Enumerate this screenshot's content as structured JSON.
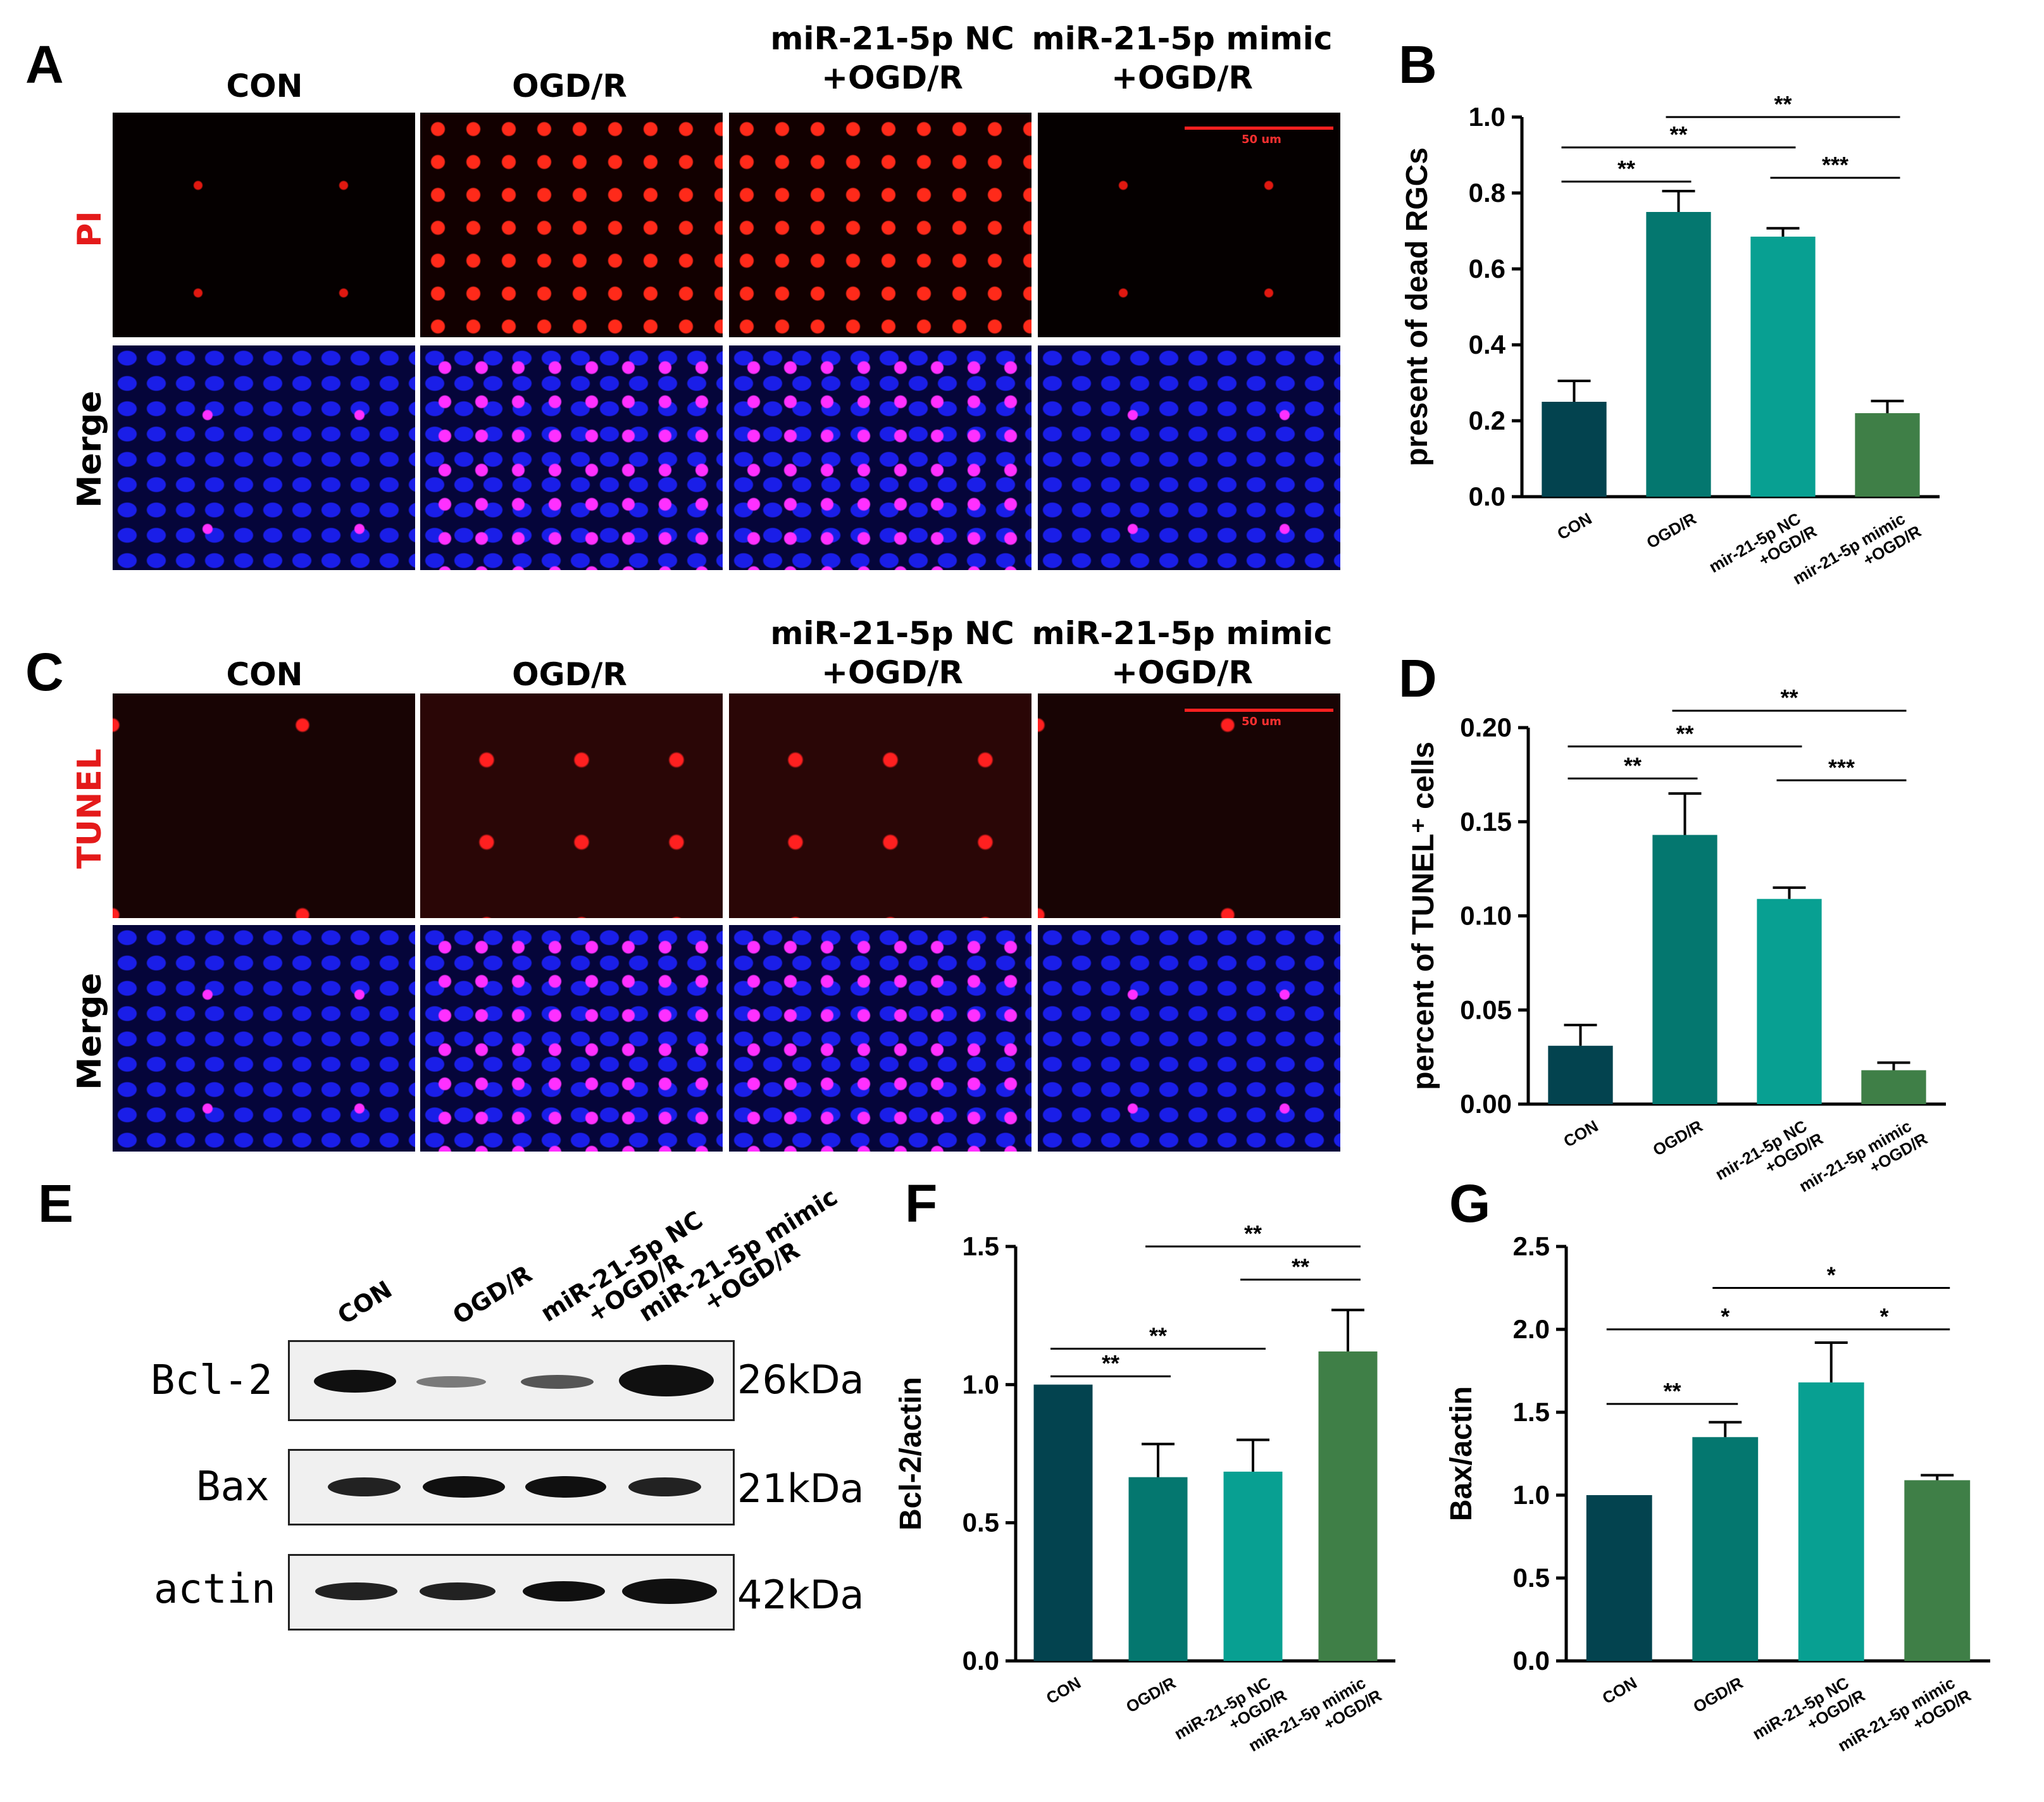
{
  "panel_letters": [
    "A",
    "B",
    "C",
    "D",
    "E",
    "F",
    "G"
  ],
  "groups": [
    "CON",
    "OGD/R",
    "miR-21-5p NC\n+OGD/R",
    "miR-21-5p mimic\n+OGD/R"
  ],
  "microscopy": {
    "row_labels_A": [
      "PI",
      "Merge"
    ],
    "row_labels_C": [
      "TUNEL",
      "Merge"
    ],
    "scale_bar": "50 um"
  },
  "western_blot": {
    "lanes": [
      "CON",
      "OGD/R",
      "miR-21-5p NC\n+OGD/R",
      "miR-21-5p mimic\n+OGD/R"
    ],
    "proteins": [
      "Bcl-2",
      "Bax",
      "actin"
    ],
    "sizes": [
      "26kDa",
      "21kDa",
      "42kDa"
    ]
  },
  "colors": {
    "con": "#03434f",
    "ogdr": "#04776f",
    "nc": "#08a092",
    "mimic": "#3f7f47",
    "red_label": "#e41a1a"
  },
  "chart_data": [
    {
      "id": "B",
      "type": "bar",
      "categories": [
        "CON",
        "OGD/R",
        "mir-21-5p NC\n+OGD/R",
        "mir-21-5p mimic\n+OGD/R"
      ],
      "values": [
        0.25,
        0.75,
        0.685,
        0.22
      ],
      "errors": [
        0.055,
        0.055,
        0.022,
        0.032
      ],
      "ylabel": "present of dead RGCs",
      "ylim": [
        0,
        1.0
      ],
      "yticks": [
        "0.0",
        "0.2",
        "0.4",
        "0.6",
        "0.8",
        "1.0"
      ],
      "significance": [
        {
          "from": 0,
          "to": 1,
          "y": 0.83,
          "label": "**"
        },
        {
          "from": 0,
          "to": 2,
          "y": 0.92,
          "label": "**"
        },
        {
          "from": 1,
          "to": 3,
          "y": 1.0,
          "label": "**"
        },
        {
          "from": 2,
          "to": 3,
          "y": 0.84,
          "label": "***"
        }
      ]
    },
    {
      "id": "D",
      "type": "bar",
      "categories": [
        "CON",
        "OGD/R",
        "mir-21-5p NC\n+OGD/R",
        "mir-21-5p mimic\n+OGD/R"
      ],
      "values": [
        0.031,
        0.143,
        0.109,
        0.018
      ],
      "errors": [
        0.011,
        0.022,
        0.006,
        0.004
      ],
      "ylabel": "percent of TUNEL⁺ cells",
      "ylim": [
        0,
        0.2
      ],
      "yticks": [
        "0.00",
        "0.05",
        "0.10",
        "0.15",
        "0.20"
      ],
      "significance": [
        {
          "from": 0,
          "to": 1,
          "y": 0.173,
          "label": "**"
        },
        {
          "from": 0,
          "to": 2,
          "y": 0.19,
          "label": "**"
        },
        {
          "from": 1,
          "to": 3,
          "y": 0.209,
          "label": "**"
        },
        {
          "from": 2,
          "to": 3,
          "y": 0.172,
          "label": "***"
        }
      ]
    },
    {
      "id": "F",
      "type": "bar",
      "categories": [
        "CON",
        "OGD/R",
        "miR-21-5p NC\n+OGD/R",
        "miR-21-5p mimic\n+OGD/R"
      ],
      "values": [
        1.0,
        0.665,
        0.685,
        1.12
      ],
      "errors": [
        0,
        0.12,
        0.115,
        0.15
      ],
      "ylabel": "Bcl-2/actin",
      "ylim": [
        0,
        1.5
      ],
      "yticks": [
        "0.0",
        "0.5",
        "1.0",
        "1.5"
      ],
      "significance": [
        {
          "from": 0,
          "to": 1,
          "y": 1.03,
          "label": "**"
        },
        {
          "from": 0,
          "to": 2,
          "y": 1.13,
          "label": "**"
        },
        {
          "from": 1,
          "to": 3,
          "y": 1.5,
          "label": "**"
        },
        {
          "from": 2,
          "to": 3,
          "y": 1.38,
          "label": "**"
        }
      ]
    },
    {
      "id": "G",
      "type": "bar",
      "categories": [
        "CON",
        "OGD/R",
        "miR-21-5p NC\n+OGD/R",
        "miR-21-5p mimic\n+OGD/R"
      ],
      "values": [
        1.0,
        1.35,
        1.68,
        1.09
      ],
      "errors": [
        0,
        0.09,
        0.24,
        0.03
      ],
      "ylabel": "Bax/actin",
      "ylim": [
        0,
        2.5
      ],
      "yticks": [
        "0.0",
        "0.5",
        "1.0",
        "1.5",
        "2.0",
        "2.5"
      ],
      "significance": [
        {
          "from": 0,
          "to": 1,
          "y": 1.55,
          "label": "**"
        },
        {
          "from": 0,
          "to": 2,
          "y": 2.0,
          "label": "*"
        },
        {
          "from": 1,
          "to": 3,
          "y": 2.25,
          "label": "*"
        },
        {
          "from": 2,
          "to": 3,
          "y": 2.0,
          "label": "*"
        }
      ]
    }
  ]
}
